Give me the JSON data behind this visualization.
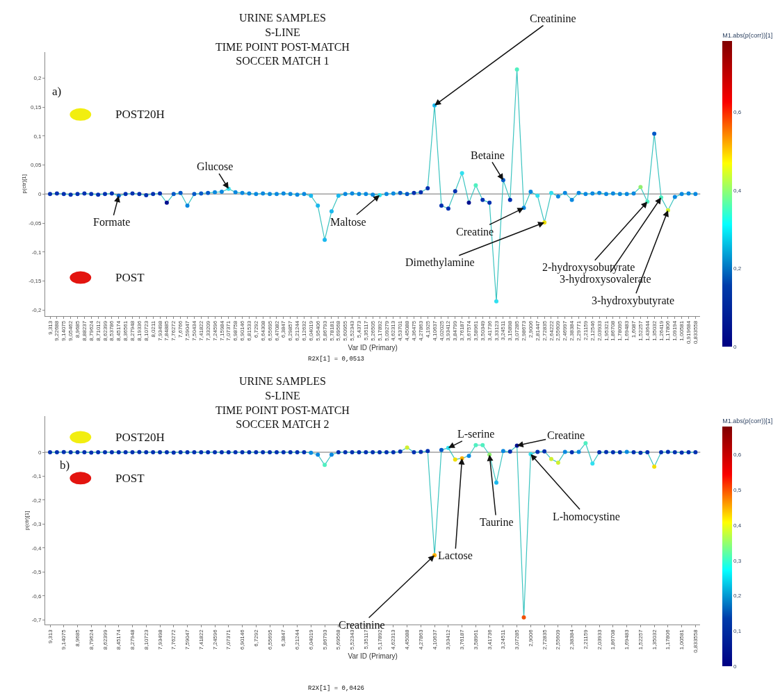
{
  "chart_data": [
    {
      "type": "line",
      "title": "URINE SAMPLES\nS-LINE\nTIME POINT POST-MATCH\nSOCCER MATCH 1",
      "xlabel": "Var ID (Primary)",
      "ylabel": "p(ctr)[1]",
      "clabel": "M1.abs(p(corr))[1]",
      "categories": [
        "9,313",
        "9,22688",
        "9,14075",
        "9,05462",
        "8,9685",
        "8,88237",
        "8,79624",
        "8,71012",
        "8,62399",
        "8,53786",
        "8,45174",
        "8,36561",
        "8,27948",
        "8,19336",
        "8,10723",
        "8,0211",
        "7,93498",
        "7,84885",
        "7,76272",
        "7,6766",
        "7,59047",
        "7,50434",
        "7,41822",
        "7,33209",
        "7,24596",
        "7,15984",
        "7,07371",
        "6,98758",
        "6,90146",
        "6,81533",
        "6,7292",
        "6,64308",
        "6,55695",
        "6,47082",
        "6,3847",
        "6,29857",
        "6,21244",
        "6,12632",
        "6,04019",
        "5,95406",
        "5,86793",
        "5,78181",
        "5,69568",
        "5,60955",
        "5,52343",
        "5,4373",
        "5,35117",
        "5,26505",
        "5,17892",
        "5,09279",
        "4,62313",
        "4,53701",
        "4,45088",
        "4,36475",
        "4,27863",
        "4,1925",
        "4,10637",
        "4,02025",
        "3,93412",
        "3,84799",
        "3,76187",
        "3,67574",
        "3,58961",
        "3,50349",
        "3,41736",
        "3,33123",
        "3,24511",
        "3,15898",
        "3,07285",
        "2,98673",
        "2,9006",
        "2,81447",
        "2,72835",
        "2,64222",
        "2,55609",
        "2,46997",
        "2,38384",
        "2,29771",
        "2,21159",
        "2,12546",
        "2,03933",
        "1,95321",
        "1,86708",
        "1,78095",
        "1,69483",
        "1,6087",
        "1,52257",
        "1,43644",
        "1,35032",
        "1,26419",
        "1,17806",
        "1,09194",
        "1,00581",
        "0,919684",
        "0,833558"
      ],
      "ylim": [
        -0.21,
        0.245
      ],
      "yticks": [
        {
          "value": -0.2,
          "label": "-0,2"
        },
        {
          "value": -0.15,
          "label": "-0,15"
        },
        {
          "value": -0.1,
          "label": "-0,1"
        },
        {
          "value": -0.05,
          "label": "-0,05"
        },
        0,
        {
          "value": 0.05,
          "label": "0,05"
        },
        {
          "value": 0.1,
          "label": "0,1"
        },
        {
          "value": 0.15,
          "label": "0,15"
        },
        {
          "value": 0.2,
          "label": "0,2"
        }
      ],
      "clim": [
        0,
        0.78
      ],
      "cticks": [
        0,
        {
          "value": 0.2,
          "label": "0,2"
        },
        {
          "value": 0.4,
          "label": "0,4"
        },
        {
          "value": 0.6,
          "label": "0,6"
        }
      ],
      "ref_lines": [
        {
          "axis": "y",
          "value": 0,
          "color": "#a0a0a0"
        }
      ],
      "series": [
        {
          "color": "#3cc4c0",
          "values": [
            0,
            0.001,
            0,
            -0.001,
            0,
            0.001,
            0,
            -0.001,
            0,
            0.001,
            -0.003,
            0,
            0.001,
            0,
            -0.002,
            0,
            0.001,
            -0.015,
            0,
            0.002,
            -0.02,
            0,
            0.001,
            0.002,
            0.003,
            0.004,
            0.009,
            0.003,
            0.002,
            0.001,
            0,
            0.001,
            0,
            0,
            0.001,
            0,
            -0.001,
            0,
            -0.003,
            -0.02,
            -0.079,
            -0.03,
            -0.003,
            0,
            0.001,
            0,
            0,
            -0.001,
            -0.002,
            0,
            0.001,
            0.002,
            0,
            0.002,
            0.003,
            0.01,
            0.153,
            -0.02,
            -0.025,
            0.005,
            0.036,
            -0.015,
            0.015,
            -0.01,
            -0.015,
            -0.185,
            0.024,
            -0.01,
            0.215,
            -0.024,
            0.004,
            -0.003,
            -0.049,
            0.002,
            -0.004,
            0.002,
            -0.01,
            0.002,
            0,
            0.001,
            0.002,
            0,
            0.001,
            0,
            0,
            0.001,
            0.012,
            -0.013,
            0.104,
            -0.006,
            -0.028,
            -0.005,
            0,
            0.001,
            0
          ]
        },
        {
          "type": "scatter",
          "values": [
            0,
            0.001,
            0,
            -0.001,
            0,
            0.001,
            0,
            -0.001,
            0,
            0.001,
            -0.003,
            0,
            0.001,
            0,
            -0.002,
            0,
            0.001,
            -0.015,
            0,
            0.002,
            -0.02,
            0,
            0.001,
            0.002,
            0.003,
            0.004,
            0.009,
            0.003,
            0.002,
            0.001,
            0,
            0.001,
            0,
            0,
            0.001,
            0,
            -0.001,
            0,
            -0.003,
            -0.02,
            -0.079,
            -0.03,
            -0.003,
            0,
            0.001,
            0,
            0,
            -0.001,
            -0.002,
            0,
            0.001,
            0.002,
            0,
            0.002,
            0.003,
            0.01,
            0.153,
            -0.02,
            -0.025,
            0.005,
            0.036,
            -0.015,
            0.015,
            -0.01,
            -0.015,
            -0.185,
            0.024,
            -0.01,
            0.215,
            -0.024,
            0.004,
            -0.003,
            -0.049,
            0.002,
            -0.004,
            0.002,
            -0.01,
            0.002,
            0,
            0.001,
            0.002,
            0,
            0.001,
            0,
            0,
            0.001,
            0.012,
            -0.013,
            0.104,
            -0.006,
            -0.028,
            -0.005,
            0,
            0.001,
            0
          ],
          "colors": [
            "#0030b0",
            "#0030b0",
            "#0030b0",
            "#0030b0",
            "#0030b0",
            "#0030b0",
            "#0030b0",
            "#0030b0",
            "#0030b0",
            "#0030b0",
            "#0058c8",
            "#0030b0",
            "#0030b0",
            "#0030b0",
            "#0030b0",
            "#0030b0",
            "#0030b0",
            "#00108f",
            "#0058c8",
            "#0058c8",
            "#0a88e0",
            "#0058c8",
            "#0058c8",
            "#0058c8",
            "#0a88e0",
            "#0a88e0",
            "#30e0f0",
            "#0a88e0",
            "#0a88e0",
            "#0a88e0",
            "#0a88e0",
            "#0a88e0",
            "#0a88e0",
            "#0a88e0",
            "#0a88e0",
            "#0a88e0",
            "#0a88e0",
            "#0a88e0",
            "#1ab8ee",
            "#1ab8ee",
            "#1ab8ee",
            "#1ab8ee",
            "#1ab8ee",
            "#0a88e0",
            "#0a88e0",
            "#0a88e0",
            "#0a88e0",
            "#0a88e0",
            "#30e0f0",
            "#0a88e0",
            "#0a88e0",
            "#0058c8",
            "#0058c8",
            "#0030b0",
            "#0030b0",
            "#0030b0",
            "#1ab8ee",
            "#0030b0",
            "#0030b0",
            "#0030b0",
            "#30e0f0",
            "#00108f",
            "#50f0c0",
            "#0030b0",
            "#0030b0",
            "#30e0f0",
            "#0058c8",
            "#0030b0",
            "#50f0c0",
            "#0a88e0",
            "#0a88e0",
            "#30e0f0",
            "#f0e000",
            "#30e0f0",
            "#0a88e0",
            "#0a88e0",
            "#0a88e0",
            "#0a88e0",
            "#0a88e0",
            "#0a88e0",
            "#0a88e0",
            "#0a88e0",
            "#0a88e0",
            "#0a88e0",
            "#0a88e0",
            "#0a88e0",
            "#90f070",
            "#50f0c0",
            "#0058c8",
            "#50f0c0",
            "#d0f030",
            "#0a88e0",
            "#0a88e0",
            "#0a88e0",
            "#0a88e0"
          ]
        }
      ],
      "annotations": [
        "a)",
        "POST20H",
        "POST",
        "R2X[1] = 0,0513",
        {
          "text": "Formate",
          "x": "8,45174",
          "y": -0.003
        },
        {
          "text": "Glucose",
          "x": "7,07371",
          "y": 0.009
        },
        {
          "text": "Maltose",
          "x": "5,17892",
          "y": -0.002
        },
        {
          "text": "Creatinine",
          "x": "4,10637",
          "y": 0.153
        },
        {
          "text": "Betaine",
          "x": "3,24511",
          "y": 0.024
        },
        {
          "text": "Creatine",
          "x": "2,98673",
          "y": -0.024
        },
        {
          "text": "Dimethylamine",
          "x": "2,72835",
          "y": -0.049
        },
        {
          "text": "2-hydroxysobutyrate",
          "x": "1,43644",
          "y": -0.013
        },
        {
          "text": "3-hydroxysovalerate",
          "x": "1,26419",
          "y": -0.006
        },
        {
          "text": "3-hydroxybutyrate",
          "x": "1,17806",
          "y": -0.028
        }
      ]
    },
    {
      "type": "line",
      "title": "URINE SAMPLES\nS-LINE\nTIME POINT POST-MATCH\nSOCCER MATCH 2",
      "xlabel": "Var ID (Primary)",
      "ylabel": "p(ctr)[1]",
      "clabel": "M1.abs(p(corr))[1]",
      "categories": [
        "9,313",
        null,
        "9,14075",
        null,
        "8,9685",
        null,
        "8,79624",
        null,
        "8,62399",
        null,
        "8,45174",
        null,
        "8,27948",
        null,
        "8,10723",
        null,
        "7,93498",
        null,
        "7,76272",
        null,
        "7,59047",
        null,
        "7,41822",
        null,
        "7,24596",
        null,
        "7,07371",
        null,
        "6,90146",
        null,
        "6,7292",
        null,
        "6,55695",
        null,
        "6,3847",
        null,
        "6,21244",
        null,
        "6,04019",
        null,
        "5,86793",
        null,
        "5,69568",
        null,
        "5,52343",
        null,
        "5,35117",
        null,
        "5,17892",
        null,
        "4,62313",
        null,
        "4,45088",
        null,
        "4,27863",
        null,
        "4,10637",
        null,
        "3,93412",
        null,
        "3,76187",
        null,
        "3,58961",
        null,
        "3,41736",
        null,
        "3,24511",
        null,
        "3,07285",
        null,
        "2,9006",
        null,
        "2,72835",
        null,
        "2,55609",
        null,
        "2,38384",
        null,
        "2,21159",
        null,
        "2,03933",
        null,
        "1,86708",
        null,
        "1,69483",
        null,
        "1,52257",
        null,
        "1,35032",
        null,
        "1,17806",
        null,
        "1,00581",
        null,
        "0,833558"
      ],
      "ylim": [
        -0.72,
        0.15
      ],
      "yticks": [
        {
          "value": -0.7,
          "label": "-0,7"
        },
        {
          "value": -0.6,
          "label": "-0,6"
        },
        {
          "value": -0.5,
          "label": "-0,5"
        },
        {
          "value": -0.4,
          "label": "-0,4"
        },
        {
          "value": -0.3,
          "label": "-0,3"
        },
        {
          "value": -0.2,
          "label": "-0,2"
        },
        {
          "value": -0.1,
          "label": "-0,1"
        },
        0
      ],
      "clim": [
        0,
        0.68
      ],
      "cticks": [
        0,
        {
          "value": 0.1,
          "label": "0,1"
        },
        {
          "value": 0.2,
          "label": "0,2"
        },
        {
          "value": 0.3,
          "label": "0,3"
        },
        {
          "value": 0.4,
          "label": "0,4"
        },
        {
          "value": 0.5,
          "label": "0,5"
        },
        {
          "value": 0.6,
          "label": "0,6"
        }
      ],
      "ref_lines": [
        {
          "axis": "y",
          "value": 0,
          "color": "#a0a0a0"
        }
      ],
      "series": [
        {
          "color": "#3cc4c0",
          "values": [
            0,
            0,
            0.001,
            0,
            0,
            0,
            -0.001,
            0,
            0,
            0,
            0,
            0,
            0,
            0.001,
            0,
            0,
            0,
            0,
            -0.001,
            0,
            0,
            0,
            0,
            0,
            0,
            0,
            0,
            0,
            0,
            0,
            0,
            0,
            0,
            0,
            0,
            0,
            0,
            0,
            -0.002,
            -0.01,
            -0.053,
            -0.01,
            0,
            0,
            0,
            0,
            0,
            0,
            0,
            0,
            0,
            0.003,
            0.02,
            0,
            0.002,
            0.005,
            -0.43,
            0.01,
            0.018,
            -0.03,
            -0.025,
            -0.015,
            0.03,
            0.03,
            -0.01,
            -0.127,
            0.005,
            0.003,
            0.028,
            -0.69,
            -0.008,
            0.002,
            0.004,
            -0.028,
            -0.043,
            0.002,
            0,
            0.002,
            0.038,
            -0.047,
            0,
            0.001,
            0,
            0,
            0.002,
            0,
            -0.002,
            0,
            -0.06,
            0,
            0.002,
            0,
            -0.001,
            0,
            0
          ]
        },
        {
          "type": "scatter",
          "values": [
            0,
            0,
            0.001,
            0,
            0,
            0,
            -0.001,
            0,
            0,
            0,
            0,
            0,
            0,
            0.001,
            0,
            0,
            0,
            0,
            -0.001,
            0,
            0,
            0,
            0,
            0,
            0,
            0,
            0,
            0,
            0,
            0,
            0,
            0,
            0,
            0,
            0,
            0,
            0,
            0,
            -0.002,
            -0.01,
            -0.053,
            -0.01,
            0,
            0,
            0,
            0,
            0,
            0,
            0,
            0,
            0,
            0.003,
            0.02,
            0,
            0.002,
            0.005,
            -0.43,
            0.01,
            0.018,
            -0.03,
            -0.025,
            -0.015,
            0.03,
            0.03,
            -0.01,
            -0.127,
            0.005,
            0.003,
            0.028,
            -0.69,
            -0.008,
            0.002,
            0.004,
            -0.028,
            -0.043,
            0.002,
            0,
            0.002,
            0.038,
            -0.047,
            0,
            0.001,
            0,
            0,
            0.002,
            0,
            -0.002,
            0,
            -0.06,
            0,
            0.002,
            0,
            -0.001,
            0,
            0
          ],
          "colors": [
            "#0030b0",
            "#0030b0",
            "#0030b0",
            "#0030b0",
            "#0030b0",
            "#0030b0",
            "#0030b0",
            "#0030b0",
            "#0030b0",
            "#0030b0",
            "#0030b0",
            "#0030b0",
            "#0030b0",
            "#0030b0",
            "#0030b0",
            "#0030b0",
            "#0030b0",
            "#0030b0",
            "#0030b0",
            "#0030b0",
            "#0030b0",
            "#0030b0",
            "#0030b0",
            "#0030b0",
            "#0030b0",
            "#0030b0",
            "#0030b0",
            "#0030b0",
            "#0030b0",
            "#0030b0",
            "#0030b0",
            "#0030b0",
            "#0030b0",
            "#0030b0",
            "#0030b0",
            "#0030b0",
            "#0030b0",
            "#0030b0",
            "#0a88e0",
            "#0a88e0",
            "#50f0c0",
            "#0a88e0",
            "#0030b0",
            "#0030b0",
            "#0030b0",
            "#0030b0",
            "#0030b0",
            "#0030b0",
            "#0030b0",
            "#0030b0",
            "#0030b0",
            "#0030b0",
            "#d0f030",
            "#0030b0",
            "#0030b0",
            "#0030b0",
            "#ffb000",
            "#0058c8",
            "#30e0f0",
            "#f0e000",
            "#ffb000",
            "#0a88e0",
            "#50f0c0",
            "#50f0c0",
            "#90f070",
            "#1ab8ee",
            "#0a88e0",
            "#0030b0",
            "#00108f",
            "#f05000",
            "#30e0f0",
            "#0030b0",
            "#0030b0",
            "#d0f030",
            "#d0f030",
            "#0a88e0",
            "#0030b0",
            "#0a88e0",
            "#50f0c0",
            "#30e0f0",
            "#0030b0",
            "#0030b0",
            "#0030b0",
            "#0030b0",
            "#0a88e0",
            "#0030b0",
            "#0030b0",
            "#0030b0",
            "#f0e000",
            "#0030b0",
            "#0030b0",
            "#0030b0",
            "#0030b0",
            "#0030b0",
            "#0030b0"
          ]
        }
      ],
      "annotations": [
        "b)",
        "POST20H",
        "POST",
        "R2X[1] = 0,0426",
        {
          "text": "L-serine",
          "x": "3,93412",
          "y": 0.018
        },
        {
          "text": "Creatine",
          "x": "3,07285",
          "y": 0.028
        },
        {
          "text": "Lactose",
          "x": "3,76187",
          "y": -0.025
        },
        {
          "text": "Taurine",
          "x": "3,41736",
          "y": -0.01
        },
        {
          "text": "L-homocystine",
          "x": "2,9006",
          "y": -0.008
        },
        {
          "text": "Creatinine",
          "x": "4,10637",
          "y": -0.43
        }
      ]
    }
  ]
}
